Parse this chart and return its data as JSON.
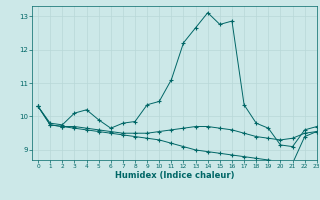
{
  "xlabel": "Humidex (Indice chaleur)",
  "bg_color": "#cce8e8",
  "line_color": "#006666",
  "grid_color": "#b8d8d8",
  "xlim": [
    -0.5,
    23
  ],
  "ylim": [
    8.7,
    13.3
  ],
  "yticks": [
    9,
    10,
    11,
    12,
    13
  ],
  "xticks": [
    0,
    1,
    2,
    3,
    4,
    5,
    6,
    7,
    8,
    9,
    10,
    11,
    12,
    13,
    14,
    15,
    16,
    17,
    18,
    19,
    20,
    21,
    22,
    23
  ],
  "line1_x": [
    0,
    1,
    2,
    3,
    4,
    5,
    6,
    7,
    8,
    9,
    10,
    11,
    12,
    13,
    14,
    15,
    16,
    17,
    18,
    19,
    20,
    21,
    22,
    23
  ],
  "line1_y": [
    10.3,
    9.8,
    9.75,
    10.1,
    10.2,
    9.9,
    9.65,
    9.8,
    9.85,
    10.35,
    10.45,
    11.1,
    12.2,
    12.65,
    13.1,
    12.75,
    12.85,
    10.35,
    9.8,
    9.65,
    9.15,
    9.1,
    9.6,
    9.7
  ],
  "line2_x": [
    0,
    1,
    2,
    3,
    4,
    5,
    6,
    7,
    8,
    9,
    10,
    11,
    12,
    13,
    14,
    15,
    16,
    17,
    18,
    19,
    20,
    21,
    22,
    23
  ],
  "line2_y": [
    10.3,
    9.75,
    9.7,
    9.7,
    9.65,
    9.6,
    9.55,
    9.5,
    9.5,
    9.5,
    9.55,
    9.6,
    9.65,
    9.7,
    9.7,
    9.65,
    9.6,
    9.5,
    9.4,
    9.35,
    9.3,
    9.35,
    9.5,
    9.55
  ],
  "line3_x": [
    0,
    1,
    2,
    3,
    4,
    5,
    6,
    7,
    8,
    9,
    10,
    11,
    12,
    13,
    14,
    15,
    16,
    17,
    18,
    19,
    20,
    21,
    22,
    23
  ],
  "line3_y": [
    10.3,
    9.75,
    9.7,
    9.65,
    9.6,
    9.55,
    9.5,
    9.45,
    9.4,
    9.35,
    9.3,
    9.2,
    9.1,
    9.0,
    8.95,
    8.9,
    8.85,
    8.8,
    8.75,
    8.7,
    8.65,
    8.6,
    9.4,
    9.55
  ]
}
